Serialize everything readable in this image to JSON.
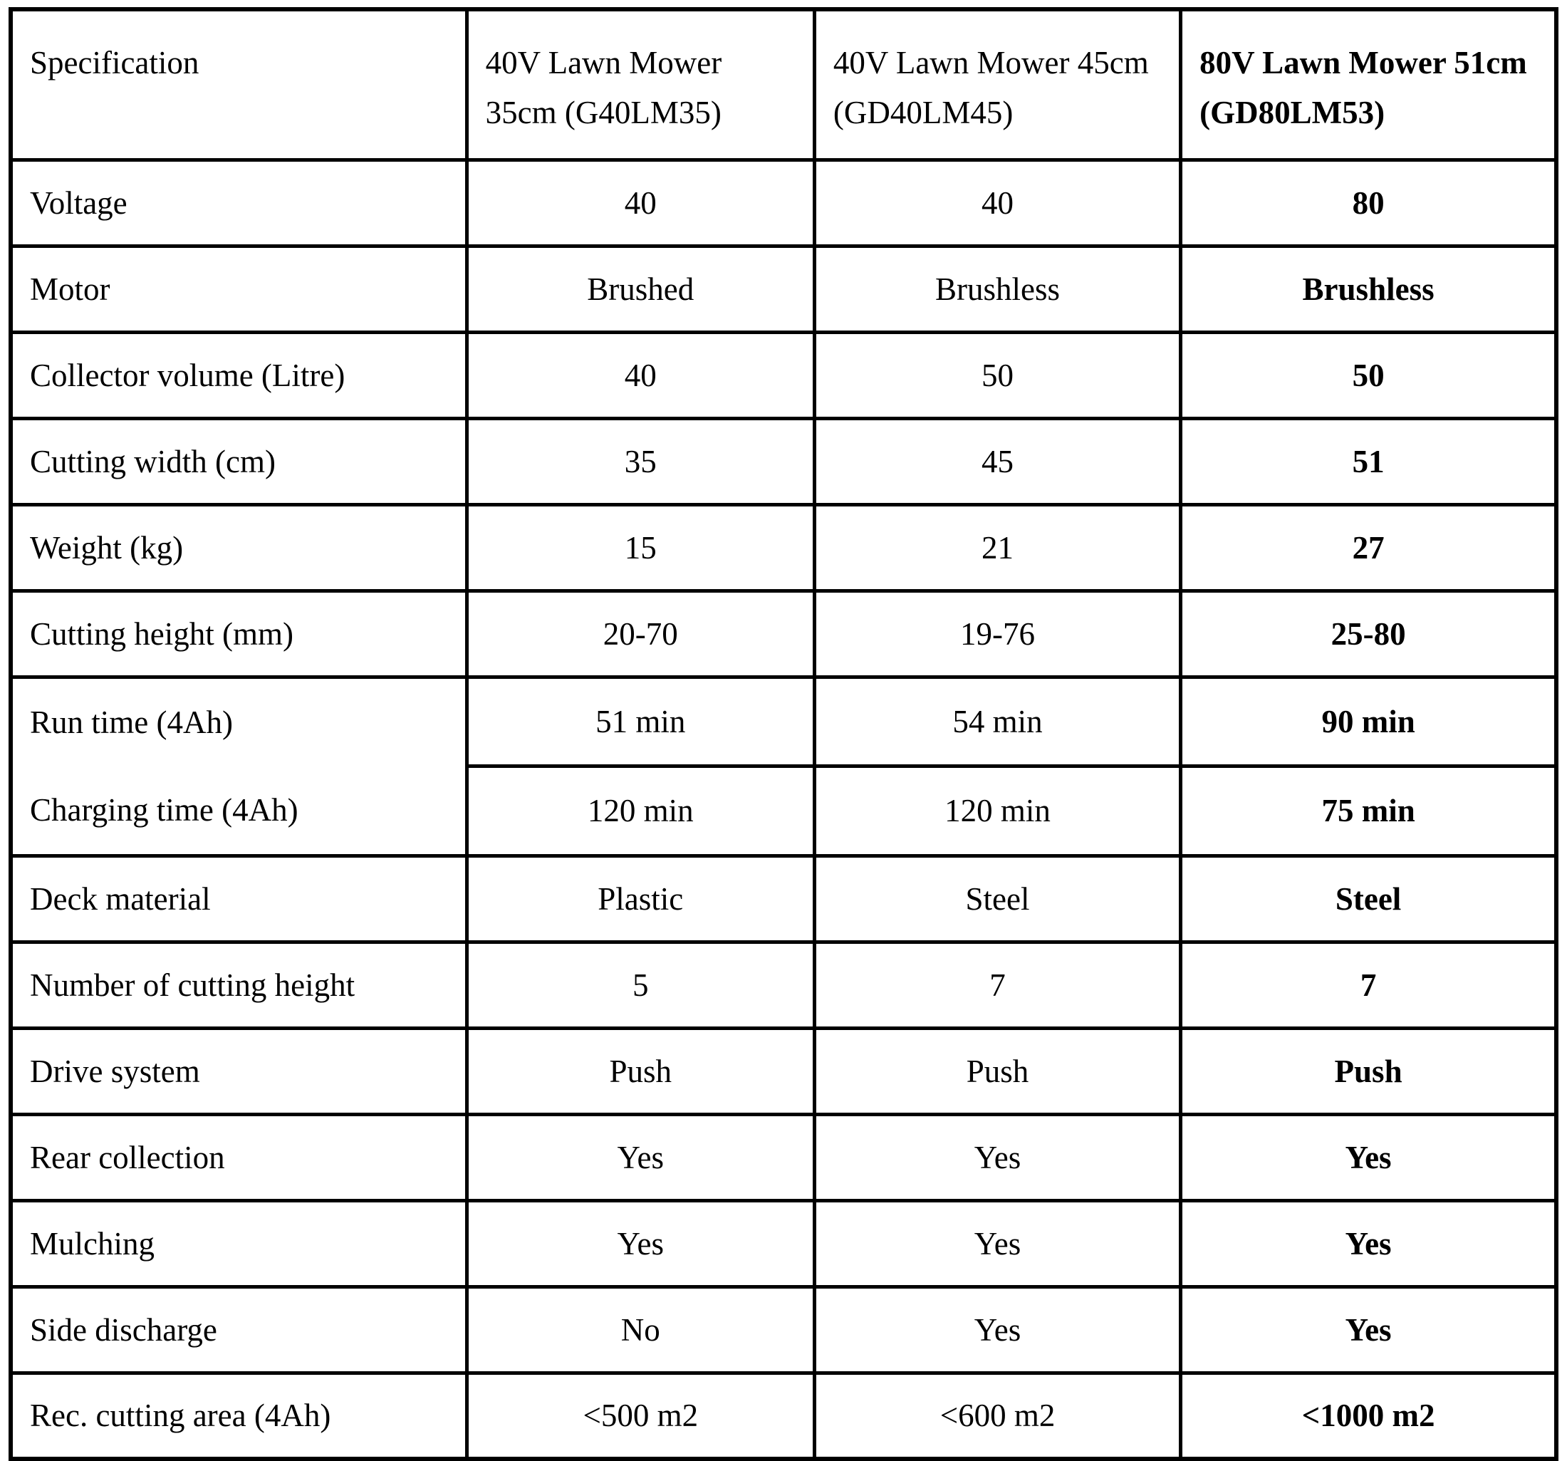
{
  "colors": {
    "border": "#000000",
    "text": "#000000",
    "background": "#ffffff"
  },
  "table": {
    "header": [
      "Specification",
      "40V Lawn Mower 35cm (G40LM35)",
      "40V Lawn Mower 45cm (GD40LM45)",
      "80V Lawn Mower 51cm (GD80LM53)"
    ],
    "rows": [
      {
        "label": "Voltage",
        "values": [
          "40",
          "40",
          "80"
        ]
      },
      {
        "label": "Motor",
        "values": [
          "Brushed",
          "Brushless",
          "Brushless"
        ]
      },
      {
        "label": "Collector volume (Litre)",
        "values": [
          "40",
          "50",
          "50"
        ]
      },
      {
        "label": "Cutting width (cm)",
        "values": [
          "35",
          "45",
          "51"
        ]
      },
      {
        "label": "Weight (kg)",
        "values": [
          "15",
          "21",
          "27"
        ]
      },
      {
        "label": "Cutting height (mm)",
        "values": [
          "20-70",
          "19-76",
          "25-80"
        ]
      },
      {
        "label": "Run time (4Ah)",
        "values": [
          "51 min",
          "54 min",
          "90 min"
        ]
      },
      {
        "label": "Charging time (4Ah)",
        "values": [
          "120 min",
          "120 min",
          "75 min"
        ]
      },
      {
        "label": "Deck material",
        "values": [
          "Plastic",
          "Steel",
          "Steel"
        ]
      },
      {
        "label": "Number of cutting height",
        "values": [
          "5",
          "7",
          "7"
        ]
      },
      {
        "label": "Drive system",
        "values": [
          "Push",
          "Push",
          "Push"
        ]
      },
      {
        "label": "Rear collection",
        "values": [
          "Yes",
          "Yes",
          "Yes"
        ]
      },
      {
        "label": "Mulching",
        "values": [
          "Yes",
          "Yes",
          "Yes"
        ]
      },
      {
        "label": "Side discharge",
        "values": [
          "No",
          "Yes",
          "Yes"
        ]
      },
      {
        "label": "Rec. cutting area (4Ah)",
        "values": [
          "<500 m2",
          "<600 m2",
          "<1000 m2"
        ]
      }
    ]
  }
}
